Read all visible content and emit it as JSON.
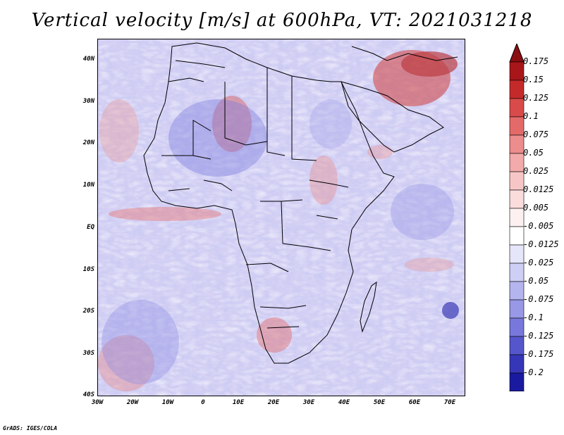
{
  "title": "Vertical velocity [m/s] at 600hPa, VT: 2021031218",
  "credit": "GrADS: IGES/COLA",
  "map": {
    "lat_labels": [
      "40N",
      "30N",
      "20N",
      "10N",
      "EQ",
      "10S",
      "20S",
      "30S",
      "40S"
    ],
    "lon_labels": [
      "30W",
      "20W",
      "10W",
      "0",
      "10E",
      "20E",
      "30E",
      "40E",
      "50E",
      "60E",
      "70E"
    ]
  },
  "legend": {
    "labels": [
      "0.175",
      "0.15",
      "0.125",
      "0.1",
      "0.075",
      "0.05",
      "0.025",
      "0.0125",
      "0.005",
      "-0.005",
      "-0.0125",
      "-0.025",
      "-0.05",
      "-0.075",
      "-0.1",
      "-0.125",
      "-0.175",
      "-0.2"
    ],
    "colors": [
      "#a8161a",
      "#c42a2a",
      "#d94a4a",
      "#e46a6a",
      "#ec8c8c",
      "#f2aaaa",
      "#f6c6c6",
      "#fadcdc",
      "#fdf0f0",
      "#ffffff",
      "#e6e6fa",
      "#cfcff5",
      "#b4b4ee",
      "#9898e6",
      "#7878dc",
      "#5656cc",
      "#3636b8",
      "#1a1aa0"
    ],
    "top_arrow_color": "#8b0e12",
    "bottom_arrow_color": "#0c0c8c"
  }
}
